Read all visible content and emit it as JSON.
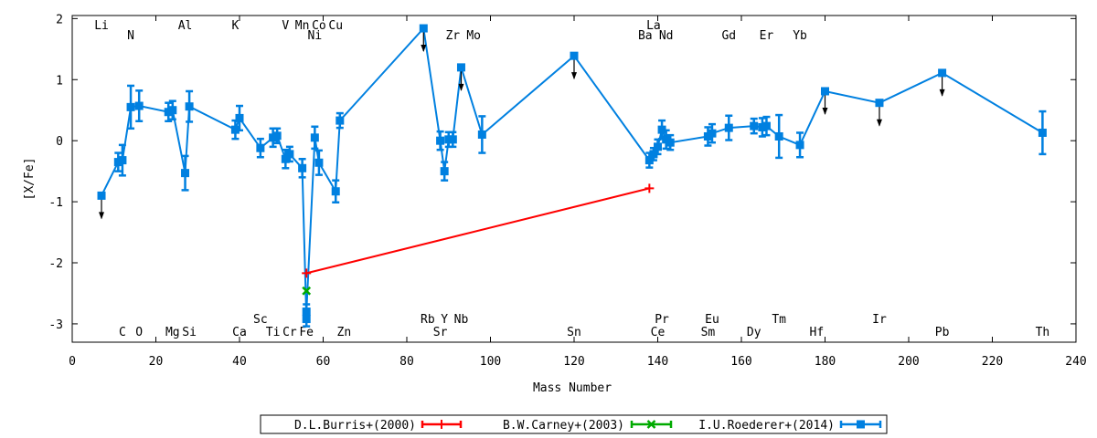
{
  "chart_data": {
    "type": "line",
    "xlabel": "Mass Number",
    "ylabel": "[X/Fe]",
    "xlim": [
      0,
      240
    ],
    "ylim": [
      -3.3,
      2.05
    ],
    "x_ticks": [
      0,
      20,
      40,
      60,
      80,
      100,
      120,
      140,
      160,
      180,
      200,
      220,
      240
    ],
    "y_ticks": [
      -3,
      -2,
      -1,
      0,
      1,
      2
    ],
    "grid": false,
    "legend_position": "bottom-center",
    "element_labels_top": [
      {
        "label": "Li",
        "x": 7,
        "row": 1
      },
      {
        "label": "N",
        "x": 14,
        "row": 2
      },
      {
        "label": "Al",
        "x": 27,
        "row": 1
      },
      {
        "label": "K",
        "x": 39,
        "row": 1
      },
      {
        "label": "V",
        "x": 51,
        "row": 1
      },
      {
        "label": "Mn",
        "x": 55,
        "row": 1
      },
      {
        "label": "Co",
        "x": 59,
        "row": 1
      },
      {
        "label": "Cu",
        "x": 63,
        "row": 1
      },
      {
        "label": "Ni",
        "x": 58,
        "row": 2
      },
      {
        "label": "Zr",
        "x": 91,
        "row": 2
      },
      {
        "label": "Mo",
        "x": 96,
        "row": 2
      },
      {
        "label": "La",
        "x": 139,
        "row": 1
      },
      {
        "label": "Ba",
        "x": 137,
        "row": 2
      },
      {
        "label": "Nd",
        "x": 142,
        "row": 2
      },
      {
        "label": "Gd",
        "x": 157,
        "row": 2
      },
      {
        "label": "Er",
        "x": 166,
        "row": 2
      },
      {
        "label": "Yb",
        "x": 174,
        "row": 2
      }
    ],
    "element_labels_bottom": [
      {
        "label": "Sc",
        "x": 45,
        "row": 1
      },
      {
        "label": "Rb",
        "x": 85,
        "row": 1
      },
      {
        "label": "Y",
        "x": 89,
        "row": 1
      },
      {
        "label": "Nb",
        "x": 93,
        "row": 1
      },
      {
        "label": "Pr",
        "x": 141,
        "row": 1
      },
      {
        "label": "Eu",
        "x": 153,
        "row": 1
      },
      {
        "label": "Tm",
        "x": 169,
        "row": 1
      },
      {
        "label": "Ir",
        "x": 193,
        "row": 1
      },
      {
        "label": "C",
        "x": 12,
        "row": 2
      },
      {
        "label": "O",
        "x": 16,
        "row": 2
      },
      {
        "label": "Mg",
        "x": 24,
        "row": 2
      },
      {
        "label": "Si",
        "x": 28,
        "row": 2
      },
      {
        "label": "Ca",
        "x": 40,
        "row": 2
      },
      {
        "label": "Ti",
        "x": 48,
        "row": 2
      },
      {
        "label": "Cr",
        "x": 52,
        "row": 2
      },
      {
        "label": "Fe",
        "x": 56,
        "row": 2
      },
      {
        "label": "Zn",
        "x": 65,
        "row": 2
      },
      {
        "label": "Sr",
        "x": 88,
        "row": 2
      },
      {
        "label": "Sn",
        "x": 120,
        "row": 2
      },
      {
        "label": "Ce",
        "x": 140,
        "row": 2
      },
      {
        "label": "Sm",
        "x": 152,
        "row": 2
      },
      {
        "label": "Dy",
        "x": 163,
        "row": 2
      },
      {
        "label": "Hf",
        "x": 178,
        "row": 2
      },
      {
        "label": "Pb",
        "x": 208,
        "row": 2
      },
      {
        "label": "Th",
        "x": 232,
        "row": 2
      }
    ],
    "series": [
      {
        "name": "D.L.Burris+(2000)",
        "color": "#ff0000",
        "marker": "plus",
        "points": [
          {
            "x": 56,
            "y": -2.17,
            "err": 0.0
          },
          {
            "x": 138,
            "y": -0.78,
            "err": 0.0
          }
        ]
      },
      {
        "name": "B.W.Carney+(2003)",
        "color": "#00aa00",
        "marker": "cross",
        "points": [
          {
            "x": 56,
            "y": -2.46,
            "err": 0.0
          }
        ]
      },
      {
        "name": "I.U.Roederer+(2014)",
        "color": "#0080e0",
        "marker": "square",
        "points": [
          {
            "x": 7,
            "y": -0.9,
            "err": 0,
            "upper_limit": true
          },
          {
            "x": 11,
            "y": -0.35,
            "err": 0.15
          },
          {
            "x": 12,
            "y": -0.32,
            "err": 0.25
          },
          {
            "x": 14,
            "y": 0.55,
            "err": 0.35
          },
          {
            "x": 16,
            "y": 0.57,
            "err": 0.25
          },
          {
            "x": 23,
            "y": 0.47,
            "err": 0.15
          },
          {
            "x": 24,
            "y": 0.5,
            "err": 0.15
          },
          {
            "x": 27,
            "y": -0.53,
            "err": 0.28
          },
          {
            "x": 28,
            "y": 0.56,
            "err": 0.25
          },
          {
            "x": 39,
            "y": 0.18,
            "err": 0.15
          },
          {
            "x": 40,
            "y": 0.37,
            "err": 0.2
          },
          {
            "x": 45,
            "y": -0.12,
            "err": 0.15
          },
          {
            "x": 48,
            "y": 0.05,
            "err": 0.15
          },
          {
            "x": 49,
            "y": 0.08,
            "err": 0.12
          },
          {
            "x": 51,
            "y": -0.3,
            "err": 0.15
          },
          {
            "x": 52,
            "y": -0.22,
            "err": 0.12
          },
          {
            "x": 55,
            "y": -0.45,
            "err": 0.15
          },
          {
            "x": 56,
            "y": -2.92,
            "err": 0.12
          },
          {
            "x": 56,
            "y": -2.8,
            "err": 0.12
          },
          {
            "x": 58,
            "y": 0.05,
            "err": 0.18
          },
          {
            "x": 59,
            "y": -0.36,
            "err": 0.2
          },
          {
            "x": 63,
            "y": -0.83,
            "err": 0.18
          },
          {
            "x": 64,
            "y": 0.33,
            "err": 0.12
          },
          {
            "x": 84,
            "y": 1.84,
            "err": 0,
            "upper_limit": true
          },
          {
            "x": 88,
            "y": 0.0,
            "err": 0.15
          },
          {
            "x": 89,
            "y": -0.5,
            "err": 0.15
          },
          {
            "x": 90,
            "y": 0.02,
            "err": 0.12
          },
          {
            "x": 91,
            "y": 0.02,
            "err": 0.12
          },
          {
            "x": 93,
            "y": 1.2,
            "err": 0,
            "upper_limit": true
          },
          {
            "x": 98,
            "y": 0.1,
            "err": 0.3
          },
          {
            "x": 120,
            "y": 1.39,
            "err": 0,
            "upper_limit": true
          },
          {
            "x": 138,
            "y": -0.32,
            "err": 0.12
          },
          {
            "x": 139,
            "y": -0.22,
            "err": 0.1
          },
          {
            "x": 140,
            "y": -0.1,
            "err": 0.12
          },
          {
            "x": 141,
            "y": 0.18,
            "err": 0.15
          },
          {
            "x": 142,
            "y": 0.02,
            "err": 0.15
          },
          {
            "x": 143,
            "y": -0.03,
            "err": 0.12
          },
          {
            "x": 152,
            "y": 0.07,
            "err": 0.15
          },
          {
            "x": 153,
            "y": 0.12,
            "err": 0.15
          },
          {
            "x": 157,
            "y": 0.21,
            "err": 0.2
          },
          {
            "x": 163,
            "y": 0.24,
            "err": 0.12
          },
          {
            "x": 165,
            "y": 0.22,
            "err": 0.15
          },
          {
            "x": 166,
            "y": 0.24,
            "err": 0.15
          },
          {
            "x": 169,
            "y": 0.07,
            "err": 0.35
          },
          {
            "x": 174,
            "y": -0.07,
            "err": 0.2
          },
          {
            "x": 180,
            "y": 0.81,
            "err": 0,
            "upper_limit": true
          },
          {
            "x": 193,
            "y": 0.62,
            "err": 0,
            "upper_limit": true
          },
          {
            "x": 208,
            "y": 1.11,
            "err": 0,
            "upper_limit": true
          },
          {
            "x": 232,
            "y": 0.13,
            "err": 0.35
          }
        ]
      }
    ]
  },
  "colors": {
    "axis": "#000000",
    "limit_arrow": "#000000"
  }
}
